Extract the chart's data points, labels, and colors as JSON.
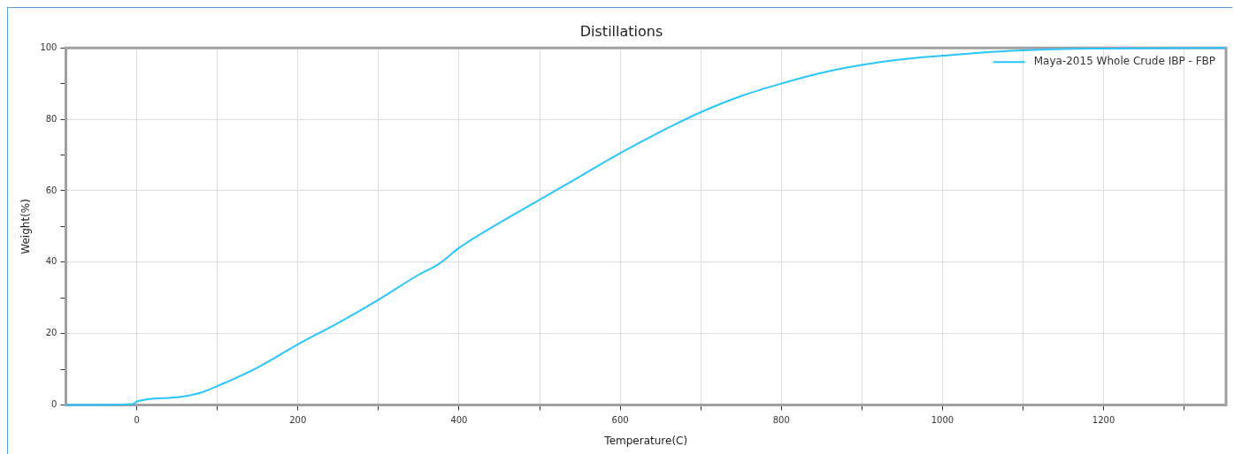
{
  "chart_data": {
    "type": "line",
    "title": "Distillations",
    "xlabel": "Temperature(C)",
    "ylabel": "Weight(%)",
    "xlim": [
      -88,
      1352
    ],
    "ylim": [
      0,
      100
    ],
    "xticks": [
      0,
      {
        "value": 100,
        "label": null
      },
      200,
      {
        "value": 300,
        "label": null
      },
      400,
      {
        "value": 500,
        "label": null
      },
      600,
      {
        "value": 700,
        "label": null
      },
      800,
      {
        "value": 900,
        "label": null
      },
      1000,
      {
        "value": 1100,
        "label": null
      },
      1200,
      {
        "value": 1300,
        "label": null
      }
    ],
    "yticks": [
      0,
      {
        "value": 10,
        "label": null
      },
      20,
      {
        "value": 30,
        "label": null
      },
      40,
      {
        "value": 50,
        "label": null
      },
      60,
      {
        "value": 70,
        "label": null
      },
      80,
      {
        "value": 90,
        "label": null
      },
      100
    ],
    "grid": true,
    "legend": "top right",
    "marker": "none",
    "line_style": "solid",
    "series": [
      {
        "name": "Maya-2015 Whole Crude IBP - FBP",
        "color": "#29c5ff",
        "x": [
          -88,
          -5,
          0,
          50,
          80,
          100,
          150,
          200,
          250,
          300,
          350,
          375,
          400,
          450,
          500,
          550,
          600,
          650,
          700,
          750,
          800,
          850,
          900,
          950,
          1000,
          1050,
          1100,
          1150,
          1200,
          1352
        ],
        "values": [
          0,
          0.3,
          1,
          2.2,
          3.5,
          5.3,
          10.5,
          17,
          23,
          29.5,
          36.5,
          39.5,
          44,
          51,
          57.5,
          64,
          70.5,
          76.5,
          82,
          86.5,
          90,
          93,
          95.2,
          96.8,
          97.8,
          98.7,
          99.3,
          99.7,
          99.8,
          100
        ]
      }
    ]
  }
}
